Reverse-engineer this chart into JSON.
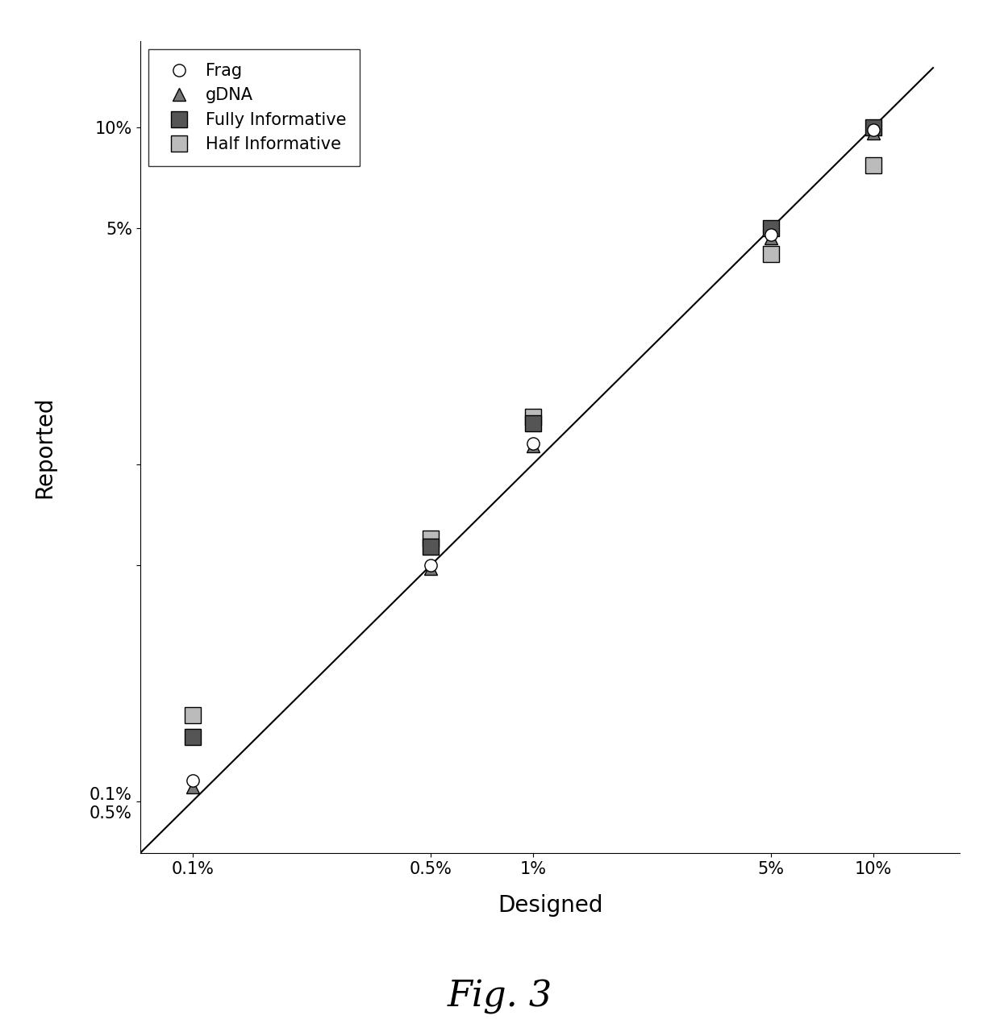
{
  "x_tick_positions": [
    1,
    2,
    3,
    4,
    5
  ],
  "x_tick_labels": [
    "0.1%",
    "0.5%",
    "1%",
    "5%",
    "10%"
  ],
  "x_tick_values": [
    0.001,
    0.005,
    0.01,
    0.05,
    0.1
  ],
  "y_tick_labels_bottom": [
    "0.1%",
    "0.5%"
  ],
  "y_tick_labels_top": [
    "5%",
    "10%"
  ],
  "xlabel": "Designed",
  "ylabel": "Reported",
  "fig_label": "Fig. 3",
  "series_Frag": {
    "x": [
      0.001,
      0.005,
      0.01,
      0.05,
      0.1
    ],
    "y": [
      0.00115,
      0.005,
      0.0115,
      0.048,
      0.098
    ]
  },
  "series_gDNA": {
    "x": [
      0.001,
      0.005,
      0.01,
      0.05,
      0.1
    ],
    "y": [
      0.0011,
      0.0049,
      0.0113,
      0.047,
      0.096
    ]
  },
  "series_fully": {
    "x": [
      0.001,
      0.005,
      0.01,
      0.05,
      0.1
    ],
    "y": [
      0.00155,
      0.0057,
      0.0132,
      0.05,
      0.1
    ]
  },
  "series_half": {
    "x": [
      0.001,
      0.005,
      0.01,
      0.05,
      0.1
    ],
    "y": [
      0.0018,
      0.006,
      0.0138,
      0.042,
      0.077
    ]
  },
  "xlim_log": [
    -3.5,
    -0.85
  ],
  "ylim_log": [
    -3.5,
    -0.85
  ],
  "line_color": "black",
  "line_width": 1.5,
  "background_color": "#ffffff",
  "legend_fontsize": 15,
  "tick_fontsize": 15,
  "label_fontsize": 20,
  "fig_label_fontsize": 32,
  "markersize_sq": 14,
  "markersize_small": 11
}
